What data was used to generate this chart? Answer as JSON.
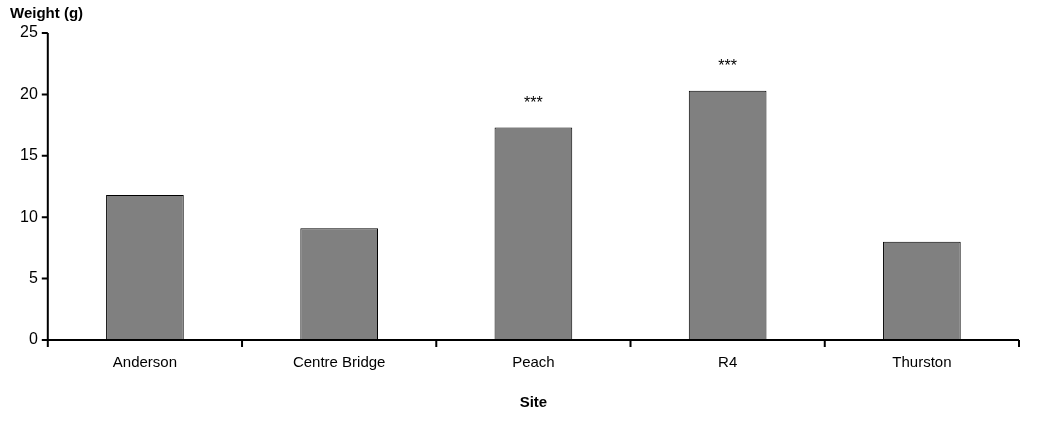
{
  "chart_data": {
    "type": "bar",
    "ylabel": "Weight (g)",
    "xlabel": "Site",
    "categories": [
      "Anderson",
      "Centre Bridge",
      "Peach",
      "R4",
      "Thurston"
    ],
    "values": [
      11.8,
      9.1,
      17.3,
      20.3,
      8.0
    ],
    "color": "#808080",
    "ylim": [
      0,
      25
    ],
    "yticks": [
      0,
      5,
      10,
      15,
      20,
      25
    ],
    "grid": false,
    "legend": false,
    "annotations": [
      {
        "text": "***",
        "x": "Peach",
        "y": 17.3
      },
      {
        "text": "***",
        "x": "R4",
        "y": 20.3
      }
    ]
  }
}
